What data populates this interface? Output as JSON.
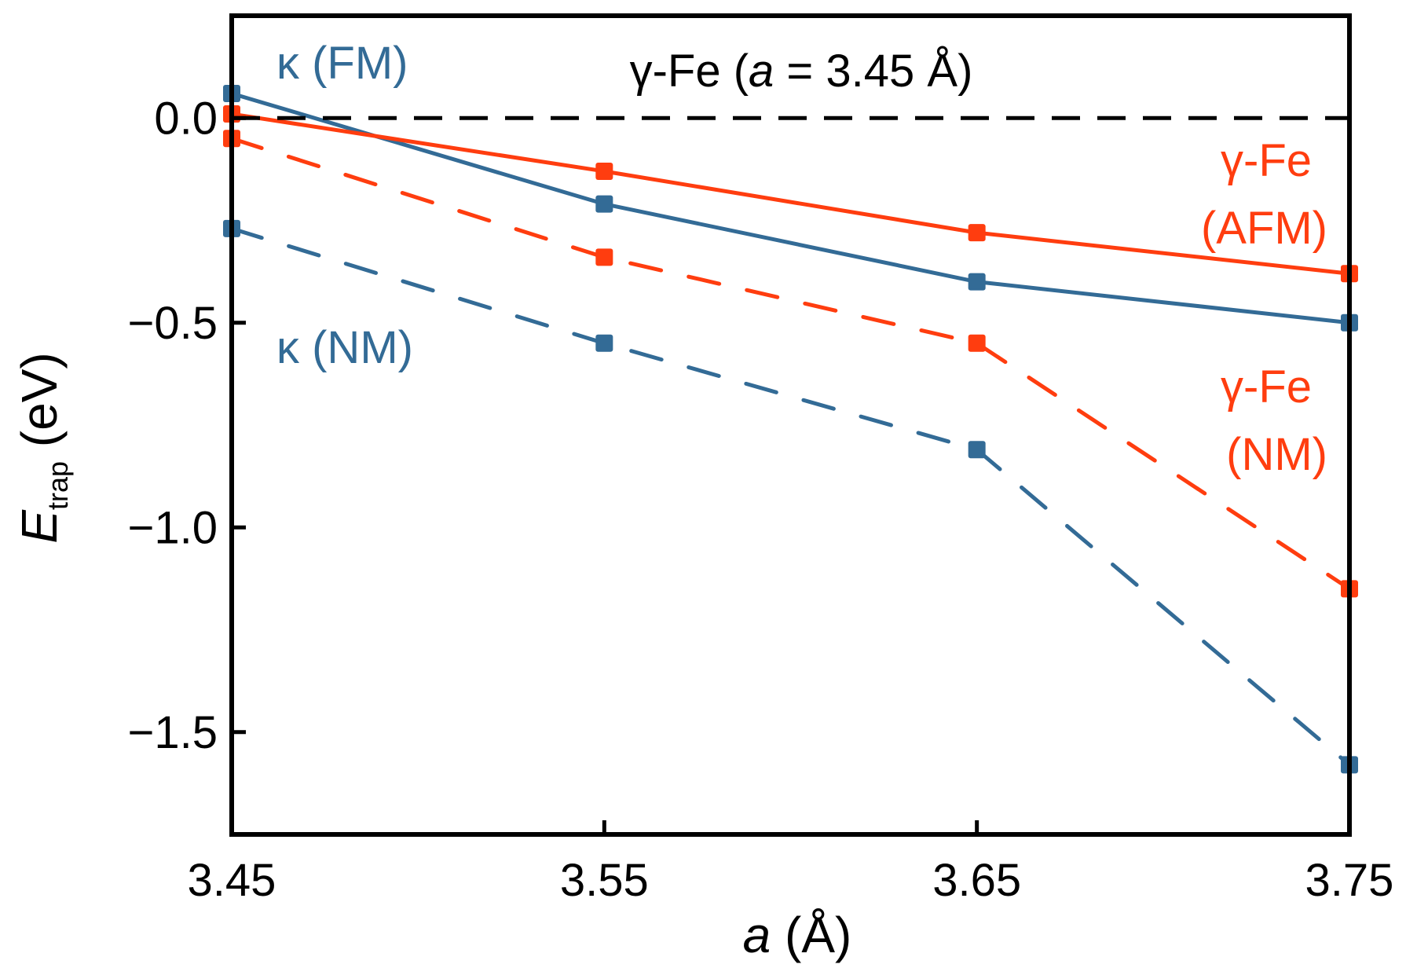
{
  "chart_data": {
    "type": "line",
    "title": "",
    "xlabel": {
      "italic": "a",
      "rest": " (Å)"
    },
    "ylabel": {
      "italic": "E",
      "sub": "trap",
      "rest": " (eV)"
    },
    "xlim": [
      3.45,
      3.75
    ],
    "ylim": [
      -1.75,
      0.25
    ],
    "x": [
      3.45,
      3.55,
      3.65,
      3.75
    ],
    "xticks": [
      3.45,
      3.55,
      3.65,
      3.75
    ],
    "xtick_labels": [
      "3.45",
      "3.55",
      "3.65",
      "3.75"
    ],
    "yticks": [
      0.0,
      -0.5,
      -1.0,
      -1.5
    ],
    "ytick_labels": [
      "0.0",
      "−0.5",
      "−1.0",
      "−1.5"
    ],
    "reference_line": {
      "y": 0.0,
      "label": {
        "prefix": "γ-Fe (",
        "italic": "a",
        "suffix": " = 3.45 Å)"
      }
    },
    "series": [
      {
        "name": "κ (FM)",
        "values": [
          0.06,
          -0.21,
          -0.4,
          -0.5
        ],
        "color": "#336b96",
        "style": "solid"
      },
      {
        "name": "γ-Fe (AFM)",
        "values": [
          0.01,
          -0.13,
          -0.28,
          -0.38
        ],
        "color": "#ff3d0f",
        "style": "solid"
      },
      {
        "name": "γ-Fe (NM)",
        "values": [
          -0.05,
          -0.34,
          -0.55,
          -1.15
        ],
        "color": "#ff3d0f",
        "style": "dashed"
      },
      {
        "name": "κ (NM)",
        "values": [
          -0.27,
          -0.55,
          -0.81,
          -1.58
        ],
        "color": "#336b96",
        "style": "dashed"
      }
    ],
    "annotations": {
      "kappa_fm": "κ (FM)",
      "kappa_nm": "κ (NM)",
      "gfe_afm_line1": "γ-Fe",
      "gfe_afm_line2": "(AFM)",
      "gfe_nm_line1": "γ-Fe",
      "gfe_nm_line2": "(NM)"
    },
    "colors": {
      "kappa": "#336b96",
      "gamma_fe": "#ff3d0f",
      "axis": "#000000"
    }
  }
}
